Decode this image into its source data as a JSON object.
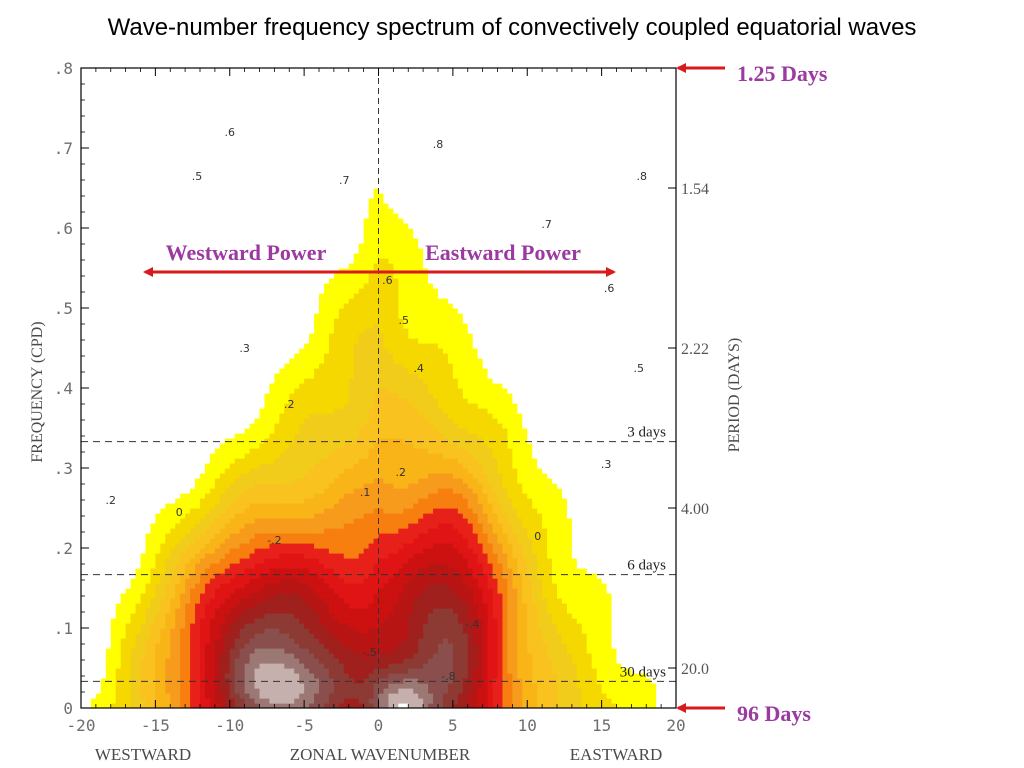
{
  "slide_title": "Wave-number frequency spectrum of convectively coupled equatorial waves",
  "chart_data": {
    "type": "heatmap",
    "xlabel": "ZONAL WAVENUMBER",
    "x_left_label": "WESTWARD",
    "x_right_label": "EASTWARD",
    "ylabel": "FREQUENCY (CPD)",
    "y2label": "PERIOD (DAYS)",
    "xlim": [
      -20,
      20
    ],
    "ylim": [
      0,
      0.8
    ],
    "x_ticks": [
      -20,
      -15,
      -10,
      -5,
      0,
      5,
      10,
      15,
      20
    ],
    "x_tick_labels": [
      "-20",
      "-15",
      "-10",
      "-5",
      "0",
      "5",
      "10",
      "15",
      "20"
    ],
    "y_ticks": [
      0,
      0.1,
      0.2,
      0.3,
      0.4,
      0.5,
      0.6,
      0.7,
      0.8
    ],
    "y_tick_labels": [
      "0",
      ".1",
      ".2",
      ".3",
      ".4",
      ".5",
      ".6",
      ".7",
      ".8"
    ],
    "period_ticks": [
      {
        "label": "1.54",
        "freq": 0.65
      },
      {
        "label": "2.22",
        "freq": 0.45
      },
      {
        "label": "4.00",
        "freq": 0.25
      },
      {
        "label": "20.0",
        "freq": 0.05
      }
    ],
    "period_lines": [
      {
        "label": "3 days",
        "freq": 0.333
      },
      {
        "label": "6 days",
        "freq": 0.1667
      },
      {
        "label": "30 days",
        "freq": 0.0333
      }
    ],
    "contour_levels": [
      {
        "level": 0.9,
        "color": "#ffffff"
      },
      {
        "level": 0.8,
        "color": "#ffffff"
      },
      {
        "level": 0.7,
        "color": "#ffffff"
      },
      {
        "level": 0.6,
        "color": "#ffff00"
      },
      {
        "level": 0.5,
        "color": "#f5d800"
      },
      {
        "level": 0.4,
        "color": "#f2cc1a"
      },
      {
        "level": 0.3,
        "color": "#f9c21f"
      },
      {
        "level": 0.2,
        "color": "#f9b417"
      },
      {
        "level": 0.1,
        "color": "#f79b1c"
      },
      {
        "level": 0.0,
        "color": "#f77f0f"
      },
      {
        "level": -0.1,
        "color": "#e8201a"
      },
      {
        "level": -0.2,
        "color": "#e01414"
      },
      {
        "level": -0.3,
        "color": "#cc1111"
      },
      {
        "level": -0.4,
        "color": "#b81515"
      },
      {
        "level": -0.5,
        "color": "#a0201e"
      },
      {
        "level": -0.6,
        "color": "#8c3a33"
      },
      {
        "level": -0.7,
        "color": "#8a4f4c"
      },
      {
        "level": -0.8,
        "color": "#9c7874"
      },
      {
        "level": -0.9,
        "color": "#c6b0ad"
      },
      {
        "level": -1.0,
        "color": "#ffffff"
      }
    ],
    "contour_labels": [
      {
        "text": ".6",
        "x": -10.0,
        "y": 0.715
      },
      {
        "text": ".5",
        "x": -12.2,
        "y": 0.66
      },
      {
        "text": ".7",
        "x": -2.3,
        "y": 0.655
      },
      {
        "text": ".8",
        "x": 4.0,
        "y": 0.7
      },
      {
        "text": ".8",
        "x": 17.7,
        "y": 0.66
      },
      {
        "text": ".7",
        "x": 11.3,
        "y": 0.6
      },
      {
        "text": ".6",
        "x": 0.6,
        "y": 0.53
      },
      {
        "text": ".6",
        "x": 15.5,
        "y": 0.52
      },
      {
        "text": ".5",
        "x": 1.7,
        "y": 0.48
      },
      {
        "text": ".5",
        "x": 17.5,
        "y": 0.42
      },
      {
        "text": ".4",
        "x": 2.7,
        "y": 0.42
      },
      {
        "text": ".3",
        "x": -9.0,
        "y": 0.445
      },
      {
        "text": ".2",
        "x": -6.0,
        "y": 0.375
      },
      {
        "text": ".3",
        "x": 15.3,
        "y": 0.3
      },
      {
        "text": ".2",
        "x": 1.5,
        "y": 0.29
      },
      {
        "text": ".1",
        "x": -0.9,
        "y": 0.265
      },
      {
        "text": ".2",
        "x": -18.0,
        "y": 0.255
      },
      {
        "text": "0",
        "x": -13.4,
        "y": 0.24
      },
      {
        "text": "0",
        "x": 10.7,
        "y": 0.21
      },
      {
        "text": "-.2",
        "x": -7.0,
        "y": 0.205
      },
      {
        "text": "-.4",
        "x": 6.3,
        "y": 0.1
      },
      {
        "text": "-.5",
        "x": -0.6,
        "y": 0.065
      },
      {
        "text": "-.8",
        "x": 4.7,
        "y": 0.035
      }
    ],
    "annotations": {
      "top_arrow_label": "1.25 Days",
      "bottom_arrow_label": "96 Days",
      "west_label": "Westward Power",
      "east_label": "Eastward Power"
    },
    "colors": {
      "annotation_purple": "#9b3aa0",
      "arrow_red": "#d91a1a",
      "contour_line": "#333333",
      "axis": "#000000",
      "tick_text": "#6e6e6e"
    }
  }
}
